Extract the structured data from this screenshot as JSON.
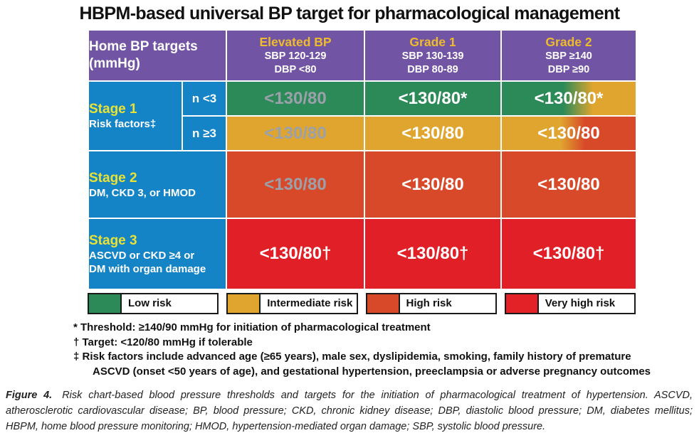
{
  "title": "HBPM-based universal BP target for pharmacological management",
  "table": {
    "corner": {
      "line1": "Home BP targets",
      "line2": "(mmHg)"
    },
    "columns": [
      {
        "grade": "Elevated BP",
        "sbp": "SBP 120-129",
        "dbp": "DBP <80"
      },
      {
        "grade": "Grade 1",
        "sbp": "SBP 130-139",
        "dbp": "DBP 80-89"
      },
      {
        "grade": "Grade 2",
        "sbp": "SBP ≥140",
        "dbp": "DBP ≥90"
      }
    ],
    "stage1": {
      "title": "Stage 1",
      "subtitle": "Risk factors‡",
      "row_n_lt3": {
        "n": "n <3",
        "cells": [
          "<130/80",
          "<130/80*",
          "<130/80*"
        ]
      },
      "row_n_ge3": {
        "n": "n ≥3",
        "cells": [
          "<130/80",
          "<130/80",
          "<130/80"
        ]
      }
    },
    "stage2": {
      "title": "Stage 2",
      "subtitle": "DM, CKD 3, or HMOD",
      "cells": [
        "<130/80",
        "<130/80",
        "<130/80"
      ]
    },
    "stage3": {
      "title": "Stage 3",
      "subtitle1": "ASCVD or CKD ≥4 or",
      "subtitle2": "DM with organ damage",
      "cells": [
        "<130/80†",
        "<130/80†",
        "<130/80†"
      ]
    }
  },
  "legend": {
    "items": [
      {
        "label": "Low risk",
        "color": "#2b8a58"
      },
      {
        "label": "Intermediate risk",
        "color": "#dfa52e"
      },
      {
        "label": "High risk",
        "color": "#d8492a"
      },
      {
        "label": "Very high risk",
        "color": "#e32227"
      }
    ]
  },
  "footnotes": [
    "* Threshold: ≥140/90 mmHg for initiation of pharmacological treatment",
    "† Target: <120/80 mmHg if tolerable",
    "‡ Risk factors include advanced age (≥65 years), male sex, dyslipidemia, smoking, family history of premature",
    "ASCVD (onset <50 years of age), and gestational hypertension, preeclampsia or adverse pregnancy outcomes"
  ],
  "caption": {
    "label": "Figure 4.",
    "text": "Risk chart-based blood pressure thresholds and targets for the initiation of pharmacological treatment of hypertension. ASCVD, atherosclerotic cardiovascular disease; BP, blood pressure; CKD, chronic kidney disease; DBP, diastolic blood pressure; DM, diabetes mellitus; HBPM, home blood pressure monitoring; HMOD, hypertension-mediated organ damage; SBP, systolic blood pressure."
  },
  "colors": {
    "header_purple": "#7254a5",
    "stage_blue": "#1484c7",
    "low_risk_green": "#2b8a58",
    "intermediate_risk_gold": "#dfa52e",
    "high_risk_orange": "#d8492a",
    "very_high_risk_red": "#e01f26",
    "grade_label_yellow": "#eebb2c",
    "stage_label_yellow": "#e9e234",
    "muted_value_gray": "#9ba1aa"
  }
}
